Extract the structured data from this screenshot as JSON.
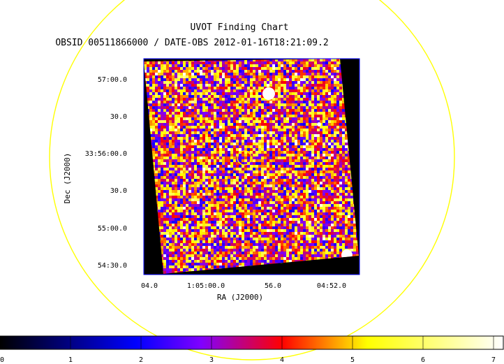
{
  "chart_data": {
    "type": "heatmap",
    "title": "UVOT Finding Chart",
    "subtitle": "OBSID 00511866000 / DATE-OBS 2012-01-16T18:21:09.2",
    "xlabel": "RA (J2000)",
    "ylabel": "Dec (J2000)",
    "x_ticks": [
      "04.0",
      "1:05:00.0",
      "56.0",
      "04:52.0"
    ],
    "y_ticks": [
      "57:00.0",
      "30.0",
      "33:56:00.0",
      "30.0",
      "55:00.0",
      "54:30.0"
    ],
    "colorbar": {
      "ticks": [
        "0",
        "1",
        "2",
        "3",
        "4",
        "5",
        "6",
        "7"
      ],
      "range": [
        0,
        7
      ],
      "colormap": [
        "#000000",
        "#0000ff",
        "#8000ff",
        "#ff0000",
        "#ffff00",
        "#ffffff"
      ]
    },
    "overlay": {
      "large_circle_color": "#ffff00",
      "source_circle_color": "#ffff00"
    },
    "grid": false
  }
}
